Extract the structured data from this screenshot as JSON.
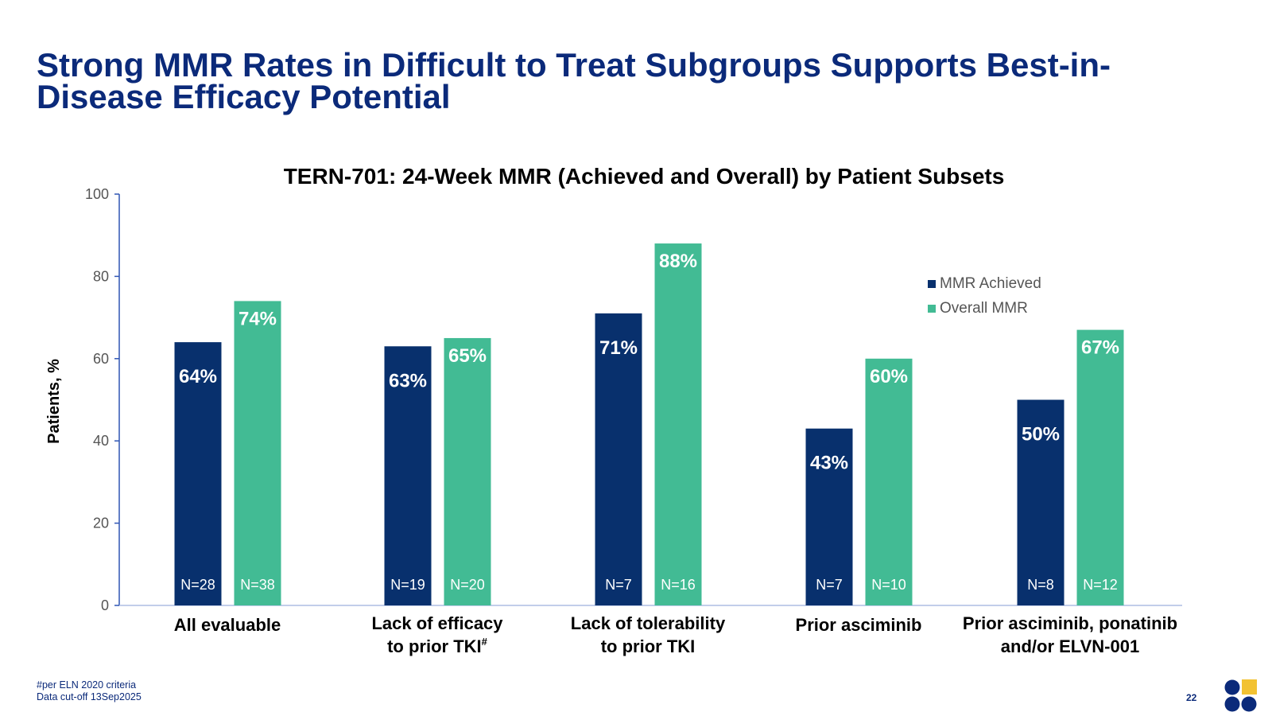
{
  "slide": {
    "title_line1": "Strong MMR Rates in Difficult to Treat Subgroups Supports Best-in-",
    "title_line2": "Disease Efficacy Potential",
    "footnote1": "#per ELN 2020 criteria",
    "footnote2": "Data cut-off 13Sep2025",
    "page_number": "22"
  },
  "colors": {
    "title": "#0b2a7a",
    "mmr_achieved": "#08306d",
    "overall_mmr": "#42bb94",
    "axis": "#2f55b4",
    "logo_blue": "#0b2a7a",
    "logo_gold": "#f2c232"
  },
  "chart_data": {
    "type": "bar",
    "title": "TERN-701: 24-Week MMR (Achieved and Overall) by Patient Subsets",
    "ylabel": "Patients, %",
    "ylim": [
      0,
      100
    ],
    "yticks": [
      0,
      20,
      40,
      60,
      80,
      100
    ],
    "categories": [
      [
        "All evaluable"
      ],
      [
        "Lack of efficacy",
        "to prior TKI"
      ],
      [
        "Lack of tolerability",
        "to prior TKI"
      ],
      [
        "Prior asciminib"
      ],
      [
        "Prior asciminib, ponatinib",
        "and/or ELVN-001"
      ]
    ],
    "category_superscripts": [
      "",
      "#",
      "",
      "",
      ""
    ],
    "series": [
      {
        "name": "MMR Achieved",
        "values": [
          64,
          63,
          71,
          43,
          50
        ],
        "value_labels": [
          "64%",
          "63%",
          "71%",
          "43%",
          "50%"
        ],
        "n_labels": [
          "N=28",
          "N=19",
          "N=7",
          "N=7",
          "N=8"
        ]
      },
      {
        "name": "Overall MMR",
        "values": [
          74,
          65,
          88,
          60,
          67
        ],
        "value_labels": [
          "74%",
          "65%",
          "88%",
          "60%",
          "67%"
        ],
        "n_labels": [
          "N=38",
          "N=20",
          "N=16",
          "N=10",
          "N=12"
        ]
      }
    ],
    "legend_position": "top-right",
    "grid": false
  }
}
